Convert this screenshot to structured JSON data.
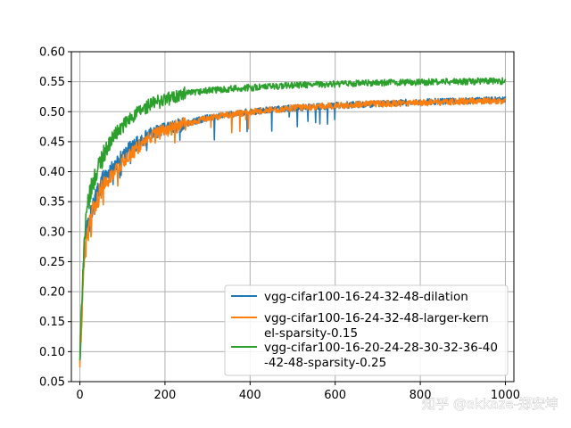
{
  "chart_data": {
    "type": "line",
    "title": "",
    "xlabel": "",
    "ylabel": "",
    "xlim": [
      -20,
      1020
    ],
    "ylim": [
      0.05,
      0.6
    ],
    "x_ticks": [
      0,
      200,
      400,
      600,
      800,
      1000
    ],
    "x_tick_labels": [
      "0",
      "200",
      "400",
      "600",
      "800",
      "1000"
    ],
    "y_ticks": [
      0.05,
      0.1,
      0.15,
      0.2,
      0.25,
      0.3,
      0.35,
      0.4,
      0.45,
      0.5,
      0.55,
      0.6
    ],
    "y_tick_labels": [
      "0.05",
      "0.10",
      "0.15",
      "0.20",
      "0.25",
      "0.30",
      "0.35",
      "0.40",
      "0.45",
      "0.50",
      "0.55",
      "0.60"
    ],
    "grid": true,
    "legend_position": "bottom-right",
    "series": [
      {
        "name": "vgg-cifar100-16-24-32-48-dilation",
        "legend_lines": [
          "vgg-cifar100-16-24-32-48-dilation"
        ],
        "color": "#1f77b4",
        "x": [
          0,
          3,
          6,
          10,
          15,
          20,
          30,
          40,
          50,
          60,
          80,
          100,
          120,
          150,
          175,
          200,
          250,
          300,
          350,
          400,
          450,
          500,
          550,
          600,
          650,
          700,
          750,
          800,
          850,
          900,
          950,
          1000
        ],
        "values": [
          0.09,
          0.14,
          0.2,
          0.27,
          0.3,
          0.32,
          0.34,
          0.36,
          0.38,
          0.39,
          0.41,
          0.425,
          0.44,
          0.455,
          0.465,
          0.47,
          0.48,
          0.49,
          0.495,
          0.5,
          0.503,
          0.506,
          0.508,
          0.51,
          0.512,
          0.513,
          0.515,
          0.516,
          0.517,
          0.518,
          0.519,
          0.52
        ]
      },
      {
        "name": "vgg-cifar100-16-24-32-48-larger-kernel-sparsity-0.15",
        "legend_lines": [
          "vgg-cifar100-16-24-32-48-larger-kern",
          "el-sparsity-0.15"
        ],
        "color": "#ff7f0e",
        "x": [
          0,
          3,
          6,
          10,
          15,
          20,
          30,
          40,
          50,
          60,
          80,
          100,
          120,
          150,
          175,
          200,
          250,
          300,
          350,
          400,
          450,
          500,
          550,
          600,
          650,
          700,
          750,
          800,
          850,
          900,
          950,
          1000
        ],
        "values": [
          0.08,
          0.13,
          0.19,
          0.25,
          0.28,
          0.3,
          0.33,
          0.35,
          0.37,
          0.38,
          0.4,
          0.415,
          0.43,
          0.45,
          0.46,
          0.47,
          0.48,
          0.49,
          0.495,
          0.5,
          0.503,
          0.506,
          0.508,
          0.51,
          0.512,
          0.513,
          0.514,
          0.515,
          0.516,
          0.517,
          0.518,
          0.518
        ]
      },
      {
        "name": "vgg-cifar100-16-20-24-28-30-32-36-40-42-48-sparsity-0.25",
        "legend_lines": [
          "vgg-cifar100-16-20-24-28-30-32-36-40",
          "-42-48-sparsity-0.25"
        ],
        "color": "#2ca02c",
        "x": [
          0,
          3,
          6,
          10,
          15,
          20,
          30,
          40,
          50,
          60,
          80,
          100,
          120,
          150,
          175,
          200,
          250,
          300,
          350,
          400,
          450,
          500,
          550,
          600,
          650,
          700,
          750,
          800,
          850,
          900,
          950,
          1000
        ],
        "values": [
          0.09,
          0.15,
          0.22,
          0.28,
          0.32,
          0.35,
          0.38,
          0.4,
          0.42,
          0.435,
          0.46,
          0.475,
          0.49,
          0.505,
          0.515,
          0.52,
          0.53,
          0.535,
          0.538,
          0.54,
          0.542,
          0.544,
          0.545,
          0.546,
          0.547,
          0.548,
          0.549,
          0.549,
          0.55,
          0.55,
          0.551,
          0.551
        ]
      }
    ]
  },
  "watermark": {
    "text": "知乎 @akkaze-郑安坤"
  }
}
